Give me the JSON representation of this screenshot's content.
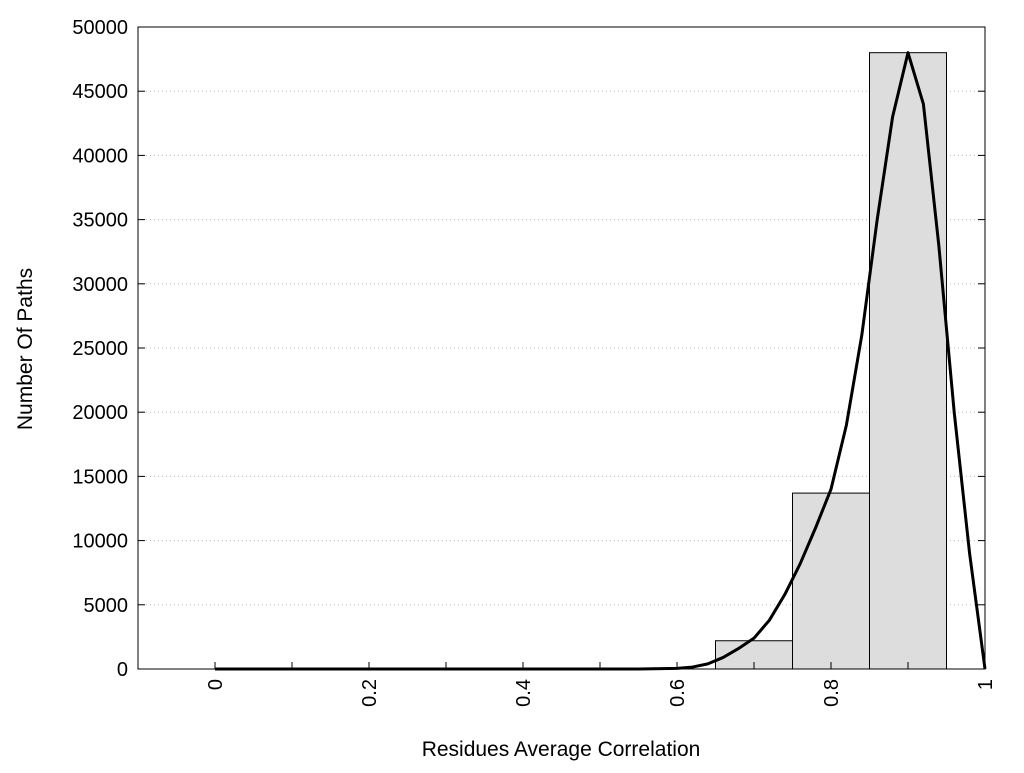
{
  "chart_data": {
    "type": "bar",
    "xlabel": "Residues Average Correlation",
    "ylabel": "Number Of Paths",
    "xlim": [
      -0.1,
      1.0
    ],
    "ylim": [
      0,
      50000
    ],
    "grid": {
      "y": true,
      "x": false,
      "style": "dotted"
    },
    "x_ticks": [
      0,
      0.2,
      0.4,
      0.6,
      0.8,
      1
    ],
    "x_tick_labels": [
      "0",
      "0.2",
      "0.4",
      "0.6",
      "0.8",
      "1"
    ],
    "x_minor_ticks": [
      0.1,
      0.3,
      0.5,
      0.7,
      0.9
    ],
    "y_ticks": [
      0,
      5000,
      10000,
      15000,
      20000,
      25000,
      30000,
      35000,
      40000,
      45000,
      50000
    ],
    "y_tick_labels": [
      "0",
      "5000",
      "10000",
      "15000",
      "20000",
      "25000",
      "30000",
      "35000",
      "40000",
      "45000",
      "50000"
    ],
    "bins": [
      {
        "x_start": 0.65,
        "x_end": 0.75,
        "value": 2200
      },
      {
        "x_start": 0.75,
        "x_end": 0.85,
        "value": 13700
      },
      {
        "x_start": 0.85,
        "x_end": 0.95,
        "value": 48000
      }
    ],
    "curve": {
      "x": [
        0.0,
        0.1,
        0.2,
        0.3,
        0.4,
        0.5,
        0.55,
        0.6,
        0.62,
        0.64,
        0.66,
        0.68,
        0.7,
        0.72,
        0.74,
        0.76,
        0.78,
        0.8,
        0.82,
        0.84,
        0.86,
        0.88,
        0.9,
        0.92,
        0.94,
        0.96,
        0.98,
        1.0
      ],
      "y": [
        0,
        0,
        0,
        0,
        0,
        0,
        0,
        50,
        150,
        400,
        900,
        1600,
        2400,
        3800,
        5800,
        8200,
        11000,
        14000,
        19000,
        26000,
        35000,
        43000,
        48000,
        44000,
        33000,
        20000,
        9000,
        0
      ]
    },
    "colors": {
      "bar_fill": "#dddddd",
      "bar_stroke": "#000000",
      "curve": "#000000",
      "grid": "#bbbbbb"
    }
  }
}
